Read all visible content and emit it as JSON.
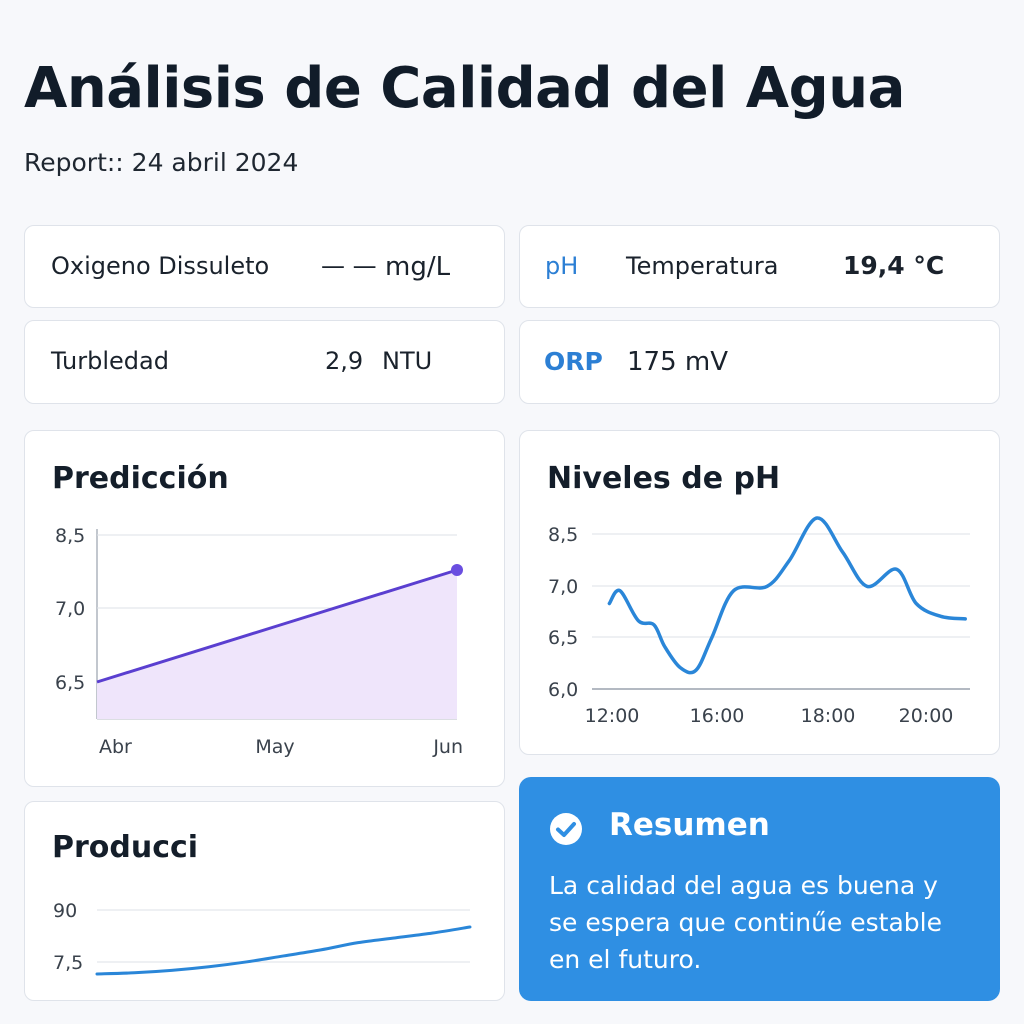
{
  "header": {
    "title": "Análisis de Calidad del Agua",
    "subtitle": "Report:: 24 abril 2024"
  },
  "metrics": {
    "oxygen": {
      "label": "Oxigeno Dissuleto",
      "value": "— —",
      "unit": "mg/L"
    },
    "ph_temp": {
      "ph_label": "pH",
      "temp_label": "Temperatura",
      "temp_value": "19,4 °C"
    },
    "turbidity": {
      "label": "Turbledad",
      "value": "2,9",
      "unit": "NTU"
    },
    "orp": {
      "label": "ORP",
      "value": "175 mV"
    }
  },
  "prediction": {
    "title": "Predicción",
    "chart_data": {
      "type": "area",
      "categories": [
        "Abr",
        "May",
        "Jun"
      ],
      "x": [
        0,
        1,
        2
      ],
      "values": [
        6.5,
        7.05,
        7.6
      ],
      "yticks": [
        "8,5",
        "7,0",
        "6,5"
      ],
      "ytick_values": [
        8.5,
        7.0,
        6.5
      ],
      "color": "#5a3fd0",
      "fill": "#efe5fb"
    }
  },
  "ph_levels": {
    "title": "Niveles de pH",
    "chart_data": {
      "type": "line",
      "x": [
        11.9,
        12.3,
        13.0,
        13.6,
        14.0,
        14.6,
        15.2,
        15.8,
        16.3,
        16.9,
        17.3,
        17.8,
        18.3,
        18.8,
        19.4,
        19.8,
        20.3,
        20.8
      ],
      "values": [
        7.0,
        7.15,
        6.8,
        6.75,
        6.5,
        6.25,
        6.22,
        6.6,
        7.15,
        7.2,
        7.5,
        8.0,
        7.6,
        7.2,
        7.4,
        7.0,
        6.85,
        6.82
      ],
      "xticks": [
        "12:00",
        "16:00",
        "18:00",
        "20:00"
      ],
      "yticks": [
        "8,5",
        "7,0",
        "6,5",
        "6,0"
      ],
      "color": "#2a86d8"
    }
  },
  "production": {
    "title": "Producci",
    "chart_data": {
      "type": "line",
      "x": [
        0,
        1,
        2,
        3,
        4,
        5,
        6,
        7,
        8,
        9,
        10
      ],
      "values": [
        6.4,
        6.5,
        6.7,
        7.0,
        7.4,
        7.9,
        8.4,
        9.0,
        9.4,
        9.8,
        10.3
      ],
      "yticks": [
        "90",
        "7,5"
      ],
      "color": "#2a86d8"
    }
  },
  "summary": {
    "title": "Resumen",
    "text": "La calidad del agua es buena y se espera que continűe estable en el futuro.",
    "icon": "check-circle-icon"
  }
}
